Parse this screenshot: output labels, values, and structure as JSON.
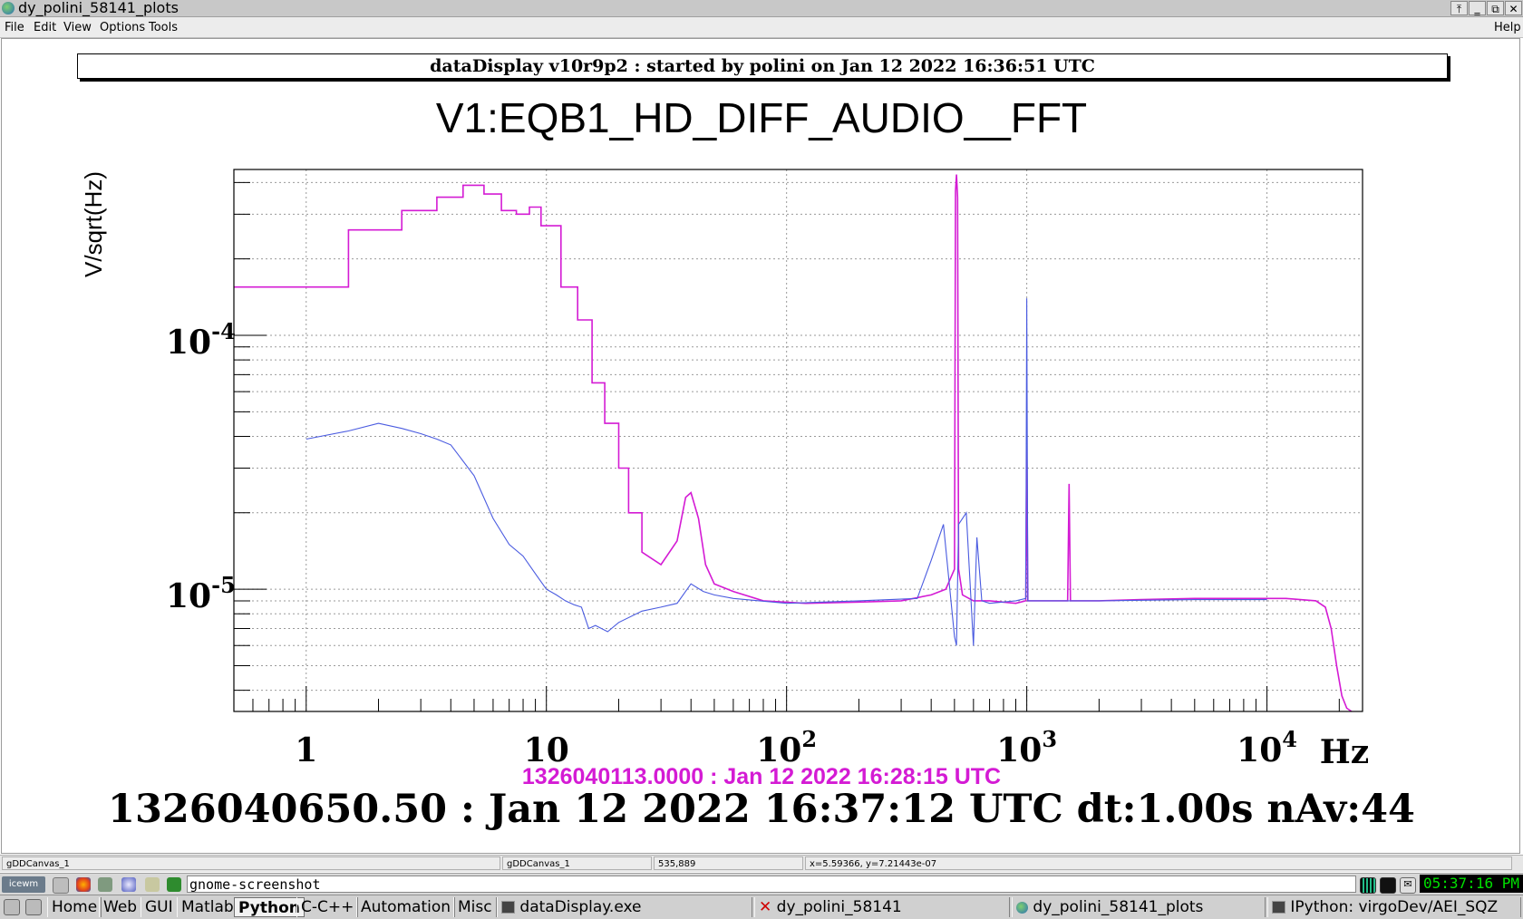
{
  "window": {
    "title": "dy_polini_58141_plots",
    "buttons": [
      "⤒",
      "‗",
      "⧉",
      "✕"
    ]
  },
  "menu": {
    "left": [
      "File",
      "Edit",
      "View",
      "Options",
      "Tools"
    ],
    "right": "Help"
  },
  "header_banner": "dataDisplay v10r9p2 : started by polini on Jan 12 2022 16:36:51 UTC",
  "plot": {
    "title": "V1:EQB1_HD_DIFF_AUDIO__FFT",
    "ylabel": "V/sqrt(Hz)",
    "xunit_label": "Hz",
    "reference_timestamp": "1326040113.0000 : Jan 12 2022 16:28:15 UTC",
    "current_timestamp": "1326040650.50 : Jan 12 2022 16:37:12 UTC dt:1.00s nAv:44"
  },
  "chart_data": {
    "type": "line",
    "title": "V1:EQB1_HD_DIFF_AUDIO__FFT",
    "xlabel": "Hz",
    "ylabel": "V/sqrt(Hz)",
    "xscale": "log",
    "yscale": "log",
    "xlim": [
      0.5,
      25000
    ],
    "ylim": [
      3.3e-06,
      0.00045
    ],
    "grid": true,
    "x_tick_labels": [
      "1",
      "10",
      "10^2",
      "10^3",
      "10^4"
    ],
    "y_tick_labels": [
      "10^-5",
      "10^-4"
    ],
    "series": [
      {
        "color": "#d41bd4",
        "x": [
          0.5,
          1.5,
          1.5,
          2.5,
          2.5,
          3.5,
          3.5,
          4.5,
          4.5,
          5.5,
          5.5,
          6.5,
          6.5,
          7.5,
          7.5,
          8.5,
          8.5,
          9.5,
          9.5,
          11.5,
          11.5,
          13.5,
          13.5,
          15.5,
          15.5,
          17.5,
          17.5,
          20,
          20,
          22,
          22,
          25,
          25,
          30,
          35,
          38,
          40,
          43,
          46,
          50,
          60,
          80,
          120,
          200,
          300,
          400,
          460,
          500,
          505,
          510,
          515,
          520,
          540,
          600,
          700,
          900,
          990,
          1000,
          1010,
          1100,
          1480,
          1500,
          1520,
          1600,
          2000,
          3000,
          5000,
          8000,
          12000,
          16000,
          17500,
          18500,
          19500,
          20500,
          21500,
          22500
        ],
        "y": [
          0.000155,
          0.000155,
          0.00026,
          0.00026,
          0.00031,
          0.00031,
          0.00035,
          0.00035,
          0.00039,
          0.00039,
          0.00036,
          0.00036,
          0.00031,
          0.00031,
          0.0003,
          0.0003,
          0.00032,
          0.00032,
          0.00027,
          0.00027,
          0.000155,
          0.000155,
          0.000115,
          0.000115,
          6.5e-05,
          6.5e-05,
          4.5e-05,
          4.5e-05,
          3e-05,
          3e-05,
          2e-05,
          2e-05,
          1.4e-05,
          1.25e-05,
          1.55e-05,
          2.3e-05,
          2.4e-05,
          1.9e-05,
          1.25e-05,
          1.05e-05,
          9.8e-06,
          9e-06,
          8.8e-06,
          8.9e-06,
          9e-06,
          9.5e-06,
          1e-05,
          1.2e-05,
          0.00037,
          0.00043,
          0.00035,
          1.2e-05,
          9.5e-06,
          9e-06,
          9e-06,
          8.8e-06,
          9e-06,
          3.6e-05,
          9e-06,
          9e-06,
          9e-06,
          2.6e-05,
          9e-06,
          9e-06,
          9e-06,
          9.1e-06,
          9.2e-06,
          9.2e-06,
          9.2e-06,
          9e-06,
          8.5e-06,
          7e-06,
          5e-06,
          3.8e-06,
          3.4e-06,
          3.3e-06
        ]
      },
      {
        "color": "#4a5be0",
        "x": [
          1,
          1.5,
          2,
          2.5,
          3,
          3.5,
          4,
          5,
          6,
          7,
          8,
          9,
          10,
          11,
          12,
          13,
          14,
          15,
          16,
          18,
          20,
          25,
          30,
          35,
          40,
          45,
          50,
          60,
          100,
          200,
          350,
          400,
          450,
          500,
          510,
          520,
          560,
          600,
          620,
          650,
          700,
          900,
          990,
          1000,
          1010,
          1100,
          2000,
          5000,
          10000
        ],
        "y": [
          3.9e-05,
          4.2e-05,
          4.5e-05,
          4.3e-05,
          4.1e-05,
          3.9e-05,
          3.7e-05,
          2.8e-05,
          1.9e-05,
          1.5e-05,
          1.35e-05,
          1.15e-05,
          1e-05,
          9.5e-06,
          9e-06,
          8.7e-06,
          8.5e-06,
          7e-06,
          7.2e-06,
          6.8e-06,
          7.4e-06,
          8.2e-06,
          8.5e-06,
          8.8e-06,
          1.05e-05,
          9.8e-06,
          9.5e-06,
          9.2e-06,
          8.8e-06,
          9e-06,
          9.2e-06,
          1.3e-05,
          1.8e-05,
          6.5e-06,
          6e-06,
          1.8e-05,
          2e-05,
          6e-06,
          1.6e-05,
          9e-06,
          8.8e-06,
          9e-06,
          9.2e-06,
          0.00014,
          9e-06,
          9e-06,
          9e-06,
          9.1e-06,
          9.1e-06
        ]
      }
    ]
  },
  "status": {
    "cell1": "gDDCanvas_1",
    "cell2": "gDDCanvas_1",
    "cell3": "535,889",
    "cell4": "x=5.59366, y=7.21443e-07"
  },
  "launcher": {
    "badge": "icewm",
    "command": "gnome-screenshot",
    "clock": "05:37:16 PM"
  },
  "taskbar": {
    "groups": [
      "Home",
      "Web",
      "GUI",
      "Matlab",
      "Python",
      "C-C++",
      "Automation",
      "Misc"
    ],
    "active_group": "Python",
    "tasks": [
      "dataDisplay.exe",
      "dy_polini_58141",
      "dy_polini_58141_plots",
      "IPython: virgoDev/AEI_SQZ"
    ]
  },
  "colors": {
    "magenta_trace": "#d41bd4",
    "blue_trace": "#4a5be0",
    "reference_timestamp": "#d41bd4"
  }
}
